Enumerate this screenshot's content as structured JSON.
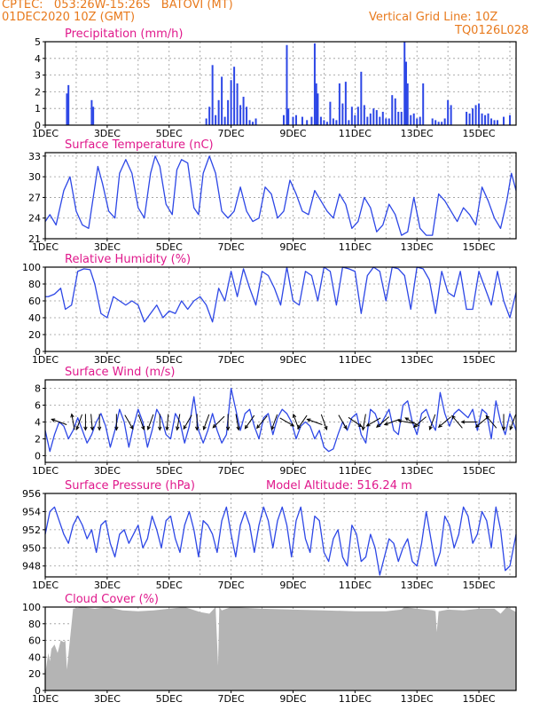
{
  "header": {
    "line1": "CPTEC:   053:26W-15:26S   BATOVI (MT)",
    "line2": "01DEC2020 10Z (GMT)",
    "grid_note": "Vertical Grid Line: 10Z",
    "model_code": "TQ0126L028"
  },
  "colors": {
    "header": "#e87a1d",
    "panel_title": "#e0198c",
    "series": "#2d47e6",
    "cloud": "#b4b4b4",
    "wind_arrow": "#000000"
  },
  "chart_data": [
    {
      "type": "bar",
      "title": "Precipitation (mm/h)",
      "x_tick_labels": [
        "1DEC",
        "3DEC",
        "5DEC",
        "7DEC",
        "9DEC",
        "11DEC",
        "13DEC",
        "15DEC"
      ],
      "x_range_days": [
        1,
        16.2
      ],
      "ylim": [
        0,
        5
      ],
      "y_ticks": [
        0,
        1,
        2,
        3,
        4,
        5
      ],
      "grid": true,
      "x": [
        1.7,
        1.75,
        2.5,
        2.55,
        6.2,
        6.3,
        6.4,
        6.5,
        6.6,
        6.7,
        6.8,
        6.9,
        7.0,
        7.1,
        7.2,
        7.3,
        7.4,
        7.5,
        7.6,
        7.7,
        7.8,
        8.7,
        8.8,
        8.85,
        9.0,
        9.1,
        9.3,
        9.45,
        9.6,
        9.7,
        9.75,
        9.8,
        9.9,
        10.0,
        10.1,
        10.2,
        10.3,
        10.4,
        10.5,
        10.6,
        10.7,
        10.8,
        10.9,
        11.0,
        11.1,
        11.2,
        11.3,
        11.4,
        11.5,
        11.6,
        11.7,
        11.8,
        11.9,
        12.0,
        12.1,
        12.2,
        12.3,
        12.4,
        12.5,
        12.6,
        12.65,
        12.7,
        12.8,
        12.9,
        13.0,
        13.1,
        13.2,
        13.5,
        13.6,
        13.7,
        13.8,
        13.9,
        14.0,
        14.1,
        14.6,
        14.7,
        14.8,
        14.9,
        15.0,
        15.1,
        15.2,
        15.3,
        15.4,
        15.5,
        15.6,
        15.8,
        16.0
      ],
      "values": [
        1.9,
        2.4,
        1.5,
        1.1,
        0.4,
        1.1,
        3.6,
        0.6,
        1.5,
        2.9,
        0.5,
        1.5,
        2.7,
        3.5,
        2.5,
        1.2,
        1.7,
        1.1,
        0.3,
        0.2,
        0.4,
        0.6,
        4.8,
        1.0,
        0.5,
        0.6,
        0.5,
        0.3,
        0.5,
        4.9,
        2.5,
        1.9,
        0.5,
        0.3,
        0.2,
        1.4,
        0.4,
        0.3,
        2.5,
        1.3,
        2.6,
        0.3,
        1.1,
        0.6,
        1.1,
        3.2,
        1.2,
        0.5,
        0.7,
        1.0,
        0.9,
        0.5,
        0.8,
        0.4,
        0.4,
        1.8,
        1.6,
        0.8,
        0.8,
        5.0,
        3.8,
        2.5,
        0.6,
        0.7,
        0.4,
        0.5,
        2.5,
        0.4,
        0.3,
        0.2,
        0.2,
        0.4,
        1.5,
        1.2,
        0.8,
        0.7,
        1.0,
        1.2,
        1.3,
        0.7,
        0.6,
        0.7,
        0.4,
        0.3,
        0.3,
        0.5,
        0.6
      ]
    },
    {
      "type": "line",
      "title": "Surface Temperature (nC)",
      "x_tick_labels": [
        "1DEC",
        "3DEC",
        "5DEC",
        "7DEC",
        "9DEC",
        "11DEC",
        "13DEC",
        "15DEC"
      ],
      "x_range_days": [
        1,
        16.2
      ],
      "ylim": [
        21,
        33.5
      ],
      "y_ticks": [
        21,
        24,
        27,
        30,
        33
      ],
      "grid": true,
      "x": [
        1,
        1.15,
        1.35,
        1.6,
        1.8,
        2.0,
        2.2,
        2.4,
        2.55,
        2.7,
        2.85,
        3.05,
        3.25,
        3.4,
        3.6,
        3.8,
        4.0,
        4.2,
        4.4,
        4.55,
        4.7,
        4.9,
        5.1,
        5.25,
        5.4,
        5.6,
        5.8,
        5.95,
        6.1,
        6.3,
        6.5,
        6.7,
        6.9,
        7.1,
        7.3,
        7.5,
        7.7,
        7.9,
        8.1,
        8.3,
        8.5,
        8.7,
        8.9,
        9.1,
        9.3,
        9.5,
        9.7,
        9.9,
        10.1,
        10.3,
        10.5,
        10.7,
        10.9,
        11.1,
        11.3,
        11.5,
        11.7,
        11.9,
        12.1,
        12.3,
        12.5,
        12.7,
        12.9,
        13.1,
        13.3,
        13.5,
        13.7,
        13.9,
        14.1,
        14.3,
        14.5,
        14.7,
        14.9,
        15.1,
        15.3,
        15.5,
        15.7,
        15.9,
        16.05,
        16.2
      ],
      "values": [
        23.5,
        24.5,
        23.0,
        28.0,
        30.0,
        25.0,
        23.0,
        22.5,
        27.0,
        31.5,
        29.0,
        25.0,
        24.0,
        30.5,
        32.5,
        30.5,
        25.5,
        24.0,
        30.5,
        33.0,
        31.5,
        26.0,
        24.5,
        31.0,
        32.5,
        32.0,
        25.5,
        24.5,
        30.5,
        33.0,
        30.5,
        25.0,
        24.0,
        25.0,
        28.5,
        25.0,
        23.5,
        24.0,
        28.5,
        27.5,
        24.0,
        25.0,
        29.5,
        27.5,
        25.0,
        24.5,
        28.0,
        26.5,
        25.0,
        24.0,
        27.5,
        26.0,
        22.5,
        23.5,
        27.0,
        25.5,
        22.0,
        23.0,
        26.0,
        24.5,
        21.5,
        22.0,
        27.0,
        22.5,
        21.5,
        21.5,
        27.5,
        26.5,
        25.0,
        23.5,
        25.5,
        24.5,
        23.0,
        28.5,
        26.5,
        24.0,
        22.5,
        26.5,
        30.5,
        28.0
      ]
    },
    {
      "type": "line",
      "title": "Relative Humidity (%)",
      "x_tick_labels": [
        "1DEC",
        "3DEC",
        "5DEC",
        "7DEC",
        "9DEC",
        "11DEC",
        "13DEC",
        "15DEC"
      ],
      "x_range_days": [
        1,
        16.2
      ],
      "ylim": [
        0,
        100
      ],
      "y_ticks": [
        0,
        20,
        40,
        60,
        80,
        100
      ],
      "grid": true,
      "x": [
        1,
        1.1,
        1.3,
        1.5,
        1.65,
        1.85,
        2.05,
        2.25,
        2.45,
        2.6,
        2.8,
        3.0,
        3.2,
        3.4,
        3.6,
        3.8,
        4.0,
        4.2,
        4.4,
        4.6,
        4.8,
        5.0,
        5.2,
        5.4,
        5.6,
        5.8,
        6.0,
        6.2,
        6.4,
        6.6,
        6.8,
        7.0,
        7.2,
        7.4,
        7.6,
        7.8,
        8.0,
        8.2,
        8.4,
        8.6,
        8.8,
        9.0,
        9.2,
        9.4,
        9.6,
        9.8,
        10.0,
        10.2,
        10.4,
        10.6,
        10.8,
        11.0,
        11.2,
        11.4,
        11.6,
        11.8,
        12.0,
        12.2,
        12.4,
        12.6,
        12.8,
        13.0,
        13.2,
        13.4,
        13.6,
        13.8,
        14.0,
        14.2,
        14.4,
        14.6,
        14.8,
        15.0,
        15.2,
        15.4,
        15.6,
        15.8,
        16.0,
        16.2
      ],
      "values": [
        65,
        65,
        68,
        75,
        50,
        55,
        95,
        98,
        97,
        80,
        45,
        40,
        65,
        60,
        55,
        60,
        55,
        35,
        45,
        55,
        40,
        48,
        45,
        60,
        50,
        60,
        65,
        55,
        35,
        75,
        60,
        95,
        65,
        98,
        75,
        55,
        95,
        90,
        75,
        55,
        100,
        60,
        55,
        95,
        90,
        60,
        100,
        95,
        55,
        100,
        98,
        95,
        45,
        90,
        100,
        95,
        60,
        100,
        98,
        90,
        50,
        100,
        98,
        85,
        45,
        95,
        70,
        65,
        95,
        50,
        50,
        95,
        75,
        55,
        95,
        60,
        40,
        70
      ]
    },
    {
      "type": "line",
      "title": "Surface Wind (m/s)",
      "x_tick_labels": [
        "1DEC",
        "3DEC",
        "5DEC",
        "7DEC",
        "9DEC",
        "11DEC",
        "13DEC",
        "15DEC"
      ],
      "x_range_days": [
        1,
        16.2
      ],
      "ylim": [
        -0.8,
        9
      ],
      "y_ticks": [
        0,
        2,
        4,
        6,
        8
      ],
      "grid": true,
      "x": [
        1,
        1.15,
        1.3,
        1.45,
        1.6,
        1.75,
        1.9,
        2.05,
        2.2,
        2.35,
        2.5,
        2.65,
        2.8,
        2.95,
        3.1,
        3.25,
        3.4,
        3.55,
        3.7,
        3.85,
        4.0,
        4.15,
        4.3,
        4.45,
        4.6,
        4.75,
        4.9,
        5.05,
        5.2,
        5.35,
        5.5,
        5.65,
        5.8,
        5.95,
        6.1,
        6.25,
        6.4,
        6.55,
        6.7,
        6.85,
        7.0,
        7.15,
        7.3,
        7.45,
        7.6,
        7.75,
        7.9,
        8.05,
        8.2,
        8.35,
        8.5,
        8.65,
        8.8,
        8.95,
        9.1,
        9.25,
        9.4,
        9.55,
        9.7,
        9.85,
        10.0,
        10.15,
        10.3,
        10.45,
        10.6,
        10.75,
        10.9,
        11.05,
        11.2,
        11.35,
        11.5,
        11.65,
        11.8,
        11.95,
        12.1,
        12.25,
        12.4,
        12.55,
        12.7,
        12.85,
        13.0,
        13.15,
        13.3,
        13.45,
        13.6,
        13.75,
        13.9,
        14.05,
        14.2,
        14.35,
        14.5,
        14.65,
        14.8,
        14.95,
        15.1,
        15.25,
        15.4,
        15.55,
        15.7,
        15.85,
        16.0,
        16.2
      ],
      "values": [
        3.0,
        0.5,
        2.5,
        4.0,
        3.5,
        2.0,
        3.0,
        4.5,
        3.0,
        1.5,
        2.5,
        4.0,
        5.0,
        3.5,
        1.0,
        3.0,
        5.5,
        4.0,
        1.0,
        3.5,
        5.5,
        4.0,
        1.0,
        3.0,
        5.5,
        4.5,
        2.5,
        2.0,
        5.0,
        4.0,
        1.5,
        3.5,
        7.0,
        3.0,
        1.5,
        3.0,
        5.0,
        3.0,
        1.5,
        2.5,
        8.0,
        5.5,
        3.0,
        5.0,
        5.5,
        3.5,
        2.0,
        4.5,
        5.0,
        2.5,
        4.5,
        5.5,
        5.0,
        4.0,
        2.0,
        3.5,
        4.0,
        3.5,
        2.0,
        3.0,
        1.0,
        0.5,
        0.8,
        2.5,
        4.0,
        3.0,
        4.5,
        5.0,
        2.5,
        1.5,
        5.5,
        5.0,
        3.5,
        4.5,
        5.5,
        3.0,
        2.5,
        6.0,
        6.5,
        4.0,
        2.5,
        5.0,
        5.5,
        4.0,
        3.0,
        7.5,
        5.0,
        3.5,
        5.0,
        5.5,
        5.0,
        4.5,
        5.5,
        3.0,
        5.5,
        5.0,
        2.0,
        6.5,
        4.0,
        2.5,
        5.0,
        3.0
      ]
    },
    {
      "type": "line",
      "title": "Surface Pressure (hPa)",
      "annotation": "Model Altitude: 516.24  m",
      "x_tick_labels": [
        "1DEC",
        "3DEC",
        "5DEC",
        "7DEC",
        "9DEC",
        "11DEC",
        "13DEC",
        "15DEC"
      ],
      "x_range_days": [
        1,
        16.2
      ],
      "ylim": [
        946.8,
        956
      ],
      "y_ticks": [
        948,
        950,
        952,
        954,
        956
      ],
      "grid": true,
      "x": [
        1,
        1.15,
        1.3,
        1.45,
        1.6,
        1.75,
        1.9,
        2.05,
        2.2,
        2.35,
        2.5,
        2.65,
        2.8,
        2.95,
        3.1,
        3.25,
        3.4,
        3.55,
        3.7,
        3.85,
        4.0,
        4.15,
        4.3,
        4.45,
        4.6,
        4.75,
        4.9,
        5.05,
        5.2,
        5.35,
        5.5,
        5.65,
        5.8,
        5.95,
        6.1,
        6.25,
        6.4,
        6.55,
        6.7,
        6.85,
        7.0,
        7.15,
        7.3,
        7.45,
        7.6,
        7.75,
        7.9,
        8.05,
        8.2,
        8.35,
        8.5,
        8.65,
        8.8,
        8.95,
        9.1,
        9.25,
        9.4,
        9.55,
        9.7,
        9.85,
        10.0,
        10.15,
        10.3,
        10.45,
        10.6,
        10.75,
        10.9,
        11.05,
        11.2,
        11.35,
        11.5,
        11.65,
        11.8,
        11.95,
        12.1,
        12.25,
        12.4,
        12.55,
        12.7,
        12.85,
        13.0,
        13.15,
        13.3,
        13.45,
        13.6,
        13.75,
        13.9,
        14.05,
        14.2,
        14.35,
        14.5,
        14.65,
        14.8,
        14.95,
        15.1,
        15.25,
        15.4,
        15.55,
        15.7,
        15.85,
        16.0,
        16.2
      ],
      "values": [
        951.5,
        954.0,
        954.5,
        953.0,
        951.5,
        950.5,
        952.5,
        953.5,
        952.5,
        951.0,
        952.0,
        949.5,
        952.5,
        953.0,
        950.5,
        949.0,
        951.5,
        952.0,
        950.5,
        951.5,
        952.5,
        950.0,
        951.0,
        953.5,
        952.0,
        950.0,
        953.0,
        953.5,
        951.0,
        949.5,
        952.5,
        954.0,
        952.0,
        949.0,
        953.0,
        952.5,
        951.5,
        949.5,
        953.0,
        954.5,
        951.5,
        949.0,
        952.5,
        954.0,
        952.5,
        949.5,
        952.5,
        954.5,
        953.0,
        950.0,
        953.0,
        954.5,
        952.5,
        949.0,
        953.0,
        954.5,
        951.0,
        949.5,
        953.5,
        953.0,
        949.5,
        948.5,
        951.0,
        952.0,
        949.0,
        948.0,
        952.5,
        951.5,
        948.5,
        949.0,
        951.5,
        950.0,
        947.0,
        949.0,
        951.0,
        950.5,
        948.5,
        950.0,
        951.0,
        948.5,
        948.0,
        950.5,
        954.0,
        951.0,
        948.0,
        949.5,
        953.5,
        952.5,
        950.0,
        951.5,
        954.5,
        953.5,
        950.5,
        951.5,
        954.0,
        953.0,
        950.0,
        954.5,
        952.0,
        947.5,
        948.0,
        951.5
      ]
    },
    {
      "type": "area",
      "title": "Cloud Cover (%)",
      "x_tick_labels": [
        "1DEC",
        "3DEC",
        "5DEC",
        "7DEC",
        "9DEC",
        "11DEC",
        "13DEC",
        "15DEC"
      ],
      "x_range_days": [
        1,
        16.2
      ],
      "ylim": [
        0,
        100
      ],
      "y_ticks": [
        0,
        20,
        40,
        60,
        80,
        100
      ],
      "grid": true,
      "x": [
        1.0,
        1.1,
        1.15,
        1.2,
        1.3,
        1.4,
        1.5,
        1.6,
        1.65,
        1.7,
        1.9,
        2.2,
        2.6,
        3.0,
        3.5,
        4.0,
        4.5,
        5.0,
        5.5,
        6.0,
        6.3,
        6.5,
        6.58,
        6.62,
        6.7,
        7.0,
        8.0,
        9.0,
        10.0,
        11.0,
        12.0,
        12.5,
        12.6,
        13.0,
        13.5,
        13.6,
        13.64,
        13.7,
        14.0,
        14.5,
        15.0,
        15.5,
        15.7,
        15.9,
        16.2
      ],
      "values": [
        20,
        45,
        35,
        50,
        55,
        45,
        60,
        58,
        60,
        25,
        98,
        100,
        98,
        100,
        96,
        95,
        96,
        98,
        100,
        94,
        92,
        100,
        30,
        100,
        96,
        100,
        98,
        97,
        96,
        95,
        95,
        97,
        100,
        98,
        96,
        95,
        70,
        95,
        97,
        96,
        98,
        98,
        92,
        100,
        94
      ]
    }
  ],
  "wind_arrows_deg": {
    "x": [
      1.45,
      1.9,
      2.1,
      2.3,
      2.5,
      2.75,
      3.3,
      3.7,
      4.1,
      4.4,
      4.7,
      4.95,
      5.3,
      5.6,
      5.9,
      6.2,
      6.6,
      6.9,
      7.2,
      7.6,
      8.0,
      8.4,
      8.8,
      9.1,
      9.3,
      9.7,
      10.0,
      10.6,
      11.0,
      11.3,
      11.6,
      11.9,
      12.2,
      12.65,
      12.85,
      13.1,
      13.5,
      13.9,
      14.3,
      14.7,
      15.1,
      15.4,
      15.8,
      16.1
    ],
    "direction_to": [
      290,
      350,
      200,
      180,
      175,
      180,
      180,
      150,
      160,
      200,
      180,
      185,
      190,
      210,
      180,
      200,
      225,
      180,
      170,
      215,
      220,
      200,
      120,
      340,
      215,
      290,
      160,
      150,
      125,
      190,
      240,
      230,
      250,
      280,
      300,
      230,
      200,
      230,
      320,
      270,
      230,
      320,
      180,
      200
    ]
  }
}
